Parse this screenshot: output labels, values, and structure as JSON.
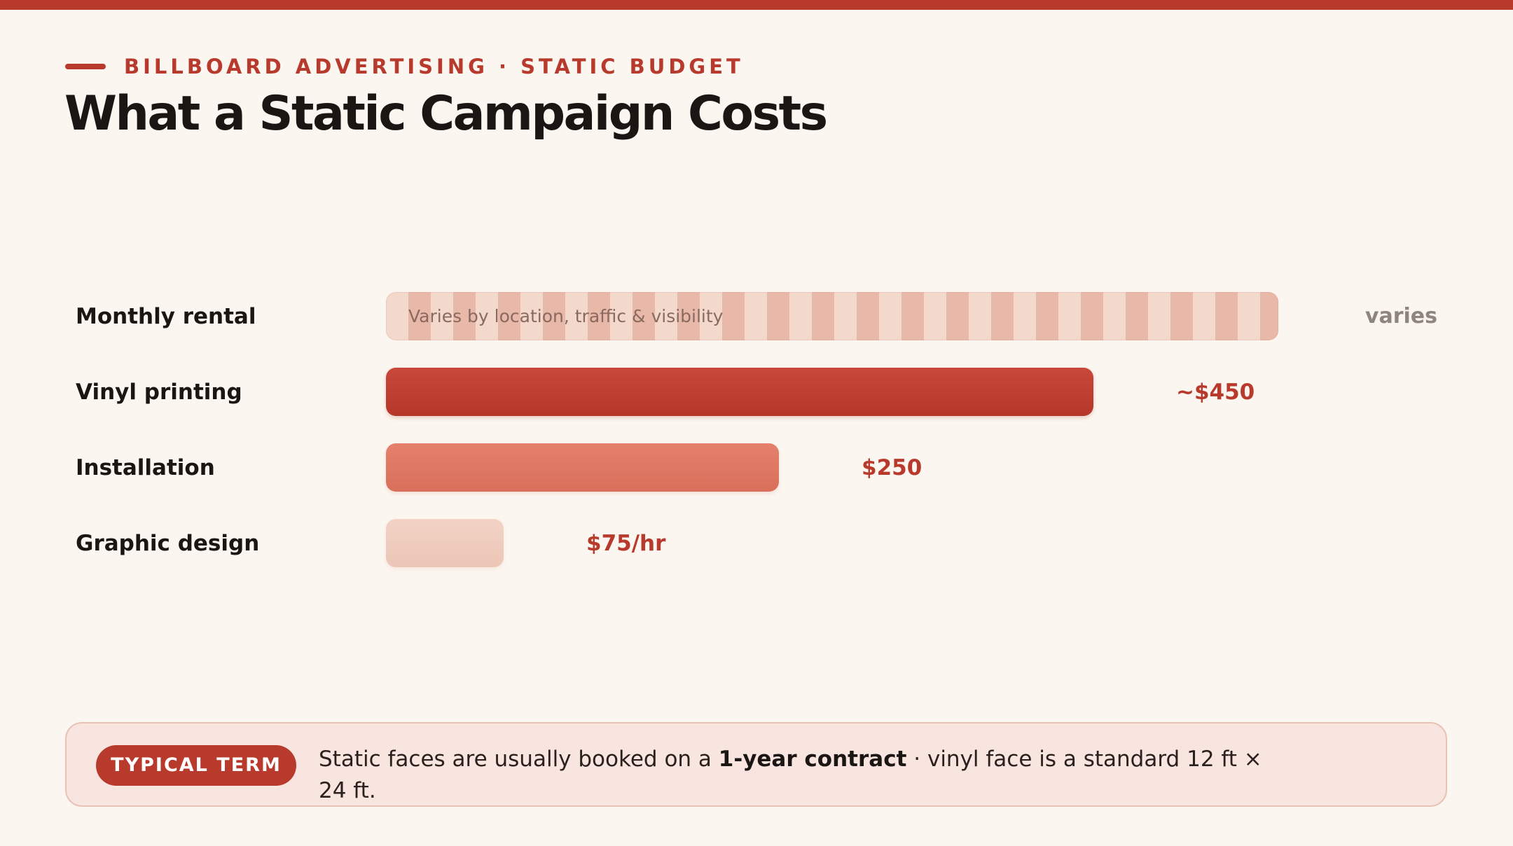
{
  "header": {
    "eyebrow": "BILLBOARD ADVERTISING · STATIC BUDGET",
    "title": "What a Static Campaign Costs"
  },
  "chart_data": {
    "type": "bar",
    "orientation": "horizontal",
    "categories": [
      "Monthly rental",
      "Vinyl printing",
      "Installation",
      "Graphic design"
    ],
    "series": [
      {
        "values": [
          null,
          450,
          250,
          75
        ]
      }
    ],
    "value_labels": [
      "varies",
      "~$450",
      "$250",
      "$75/hr"
    ],
    "notes": [
      "Varies by location, traffic & visibility",
      "",
      "",
      ""
    ],
    "colors": [
      "#e8b8a8",
      "#b83a2c",
      "#dc7763",
      "#eecbbd"
    ],
    "grid": false,
    "legend": "none"
  },
  "callout": {
    "badge": "TYPICAL TERM",
    "text_before": "Static faces are usually booked on a ",
    "text_bold": "1-year contract",
    "text_after": " · vinyl face is a standard 12 ft × 24 ft."
  },
  "colors": {
    "accent": "#b83a2c",
    "background": "#fcf6f0",
    "callout_background": "#f9e5df"
  }
}
